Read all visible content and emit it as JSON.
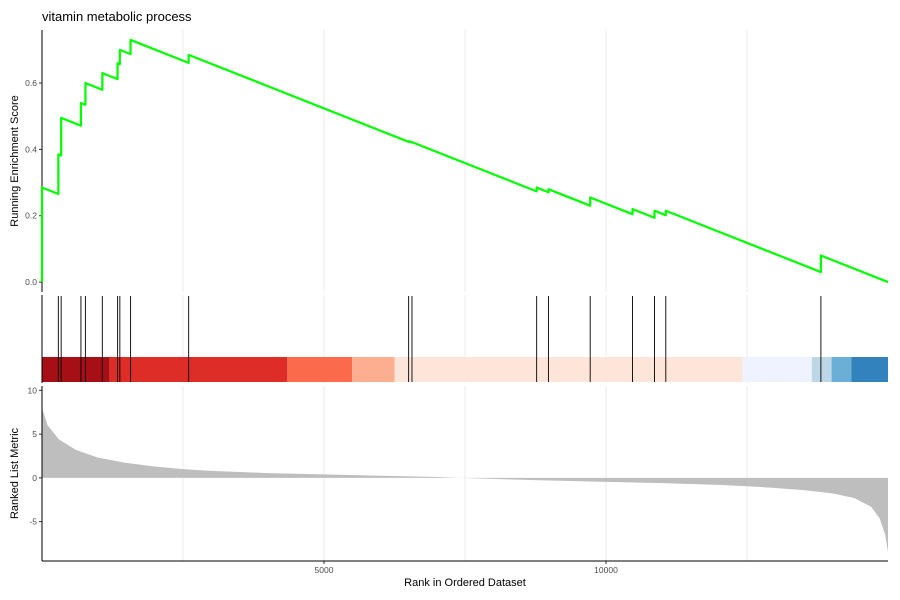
{
  "chart_data": {
    "type": "line",
    "title": "vitamin metabolic process",
    "x_axis": {
      "label": "Rank in Ordered Dataset",
      "range": [
        0,
        15000
      ],
      "ticks": [
        5000,
        10000
      ],
      "tick_labels": [
        "5000",
        "10000"
      ],
      "minor_grid": [
        2500,
        7500,
        12500
      ]
    },
    "panels": {
      "enrichment": {
        "ylabel": "Running Enrichment Score",
        "ylim": [
          -0.03,
          0.76
        ],
        "yticks": [
          0.0,
          0.2,
          0.4,
          0.6
        ],
        "ytick_labels": [
          "0.0",
          "0.2",
          "0.4",
          "0.6"
        ],
        "line_color": "#00ff00",
        "hit_positions": [
          0,
          290,
          340,
          690,
          770,
          1070,
          1340,
          1380,
          1570,
          2600,
          6500,
          6560,
          8770,
          8980,
          9720,
          10470,
          10860,
          11060,
          13810
        ],
        "peak_scores": [
          0.285,
          0.385,
          0.495,
          0.54,
          0.6,
          0.63,
          0.66,
          0.7,
          0.73,
          0.685,
          0.425,
          0.422,
          0.285,
          0.28,
          0.255,
          0.22,
          0.215,
          0.215,
          0.08
        ],
        "end": [
          15000,
          0.0
        ]
      },
      "hits": {
        "line_color": "#000000",
        "heat_bands": [
          {
            "from": 0,
            "to": 1200,
            "color": "#a50f15"
          },
          {
            "from": 1200,
            "to": 4350,
            "color": "#de2d26"
          },
          {
            "from": 4350,
            "to": 5500,
            "color": "#fb6a4a"
          },
          {
            "from": 5500,
            "to": 6250,
            "color": "#fcae91"
          },
          {
            "from": 6250,
            "to": 12420,
            "color": "#fee5d9"
          },
          {
            "from": 12420,
            "to": 13650,
            "color": "#eff3ff"
          },
          {
            "from": 13650,
            "to": 14000,
            "color": "#bdd7e7"
          },
          {
            "from": 14000,
            "to": 14350,
            "color": "#6baed6"
          },
          {
            "from": 14350,
            "to": 15000,
            "color": "#3182bd"
          }
        ]
      },
      "ranked_metric": {
        "ylabel": "Ranked List Metric",
        "ylim": [
          -9.5,
          10.5
        ],
        "yticks": [
          -5,
          0,
          5,
          10
        ],
        "ytick_labels": [
          "-5",
          "0",
          "5",
          "10"
        ],
        "fill_color": "#bebebe",
        "curve": [
          [
            0,
            8.0
          ],
          [
            100,
            6.0
          ],
          [
            300,
            4.4
          ],
          [
            600,
            3.2
          ],
          [
            1000,
            2.3
          ],
          [
            1500,
            1.7
          ],
          [
            2000,
            1.3
          ],
          [
            2500,
            1.0
          ],
          [
            3000,
            0.8
          ],
          [
            4000,
            0.55
          ],
          [
            5000,
            0.4
          ],
          [
            6000,
            0.25
          ],
          [
            7000,
            0.1
          ],
          [
            7400,
            0.0
          ],
          [
            8000,
            -0.12
          ],
          [
            9000,
            -0.3
          ],
          [
            10000,
            -0.45
          ],
          [
            11000,
            -0.6
          ],
          [
            12000,
            -0.8
          ],
          [
            12500,
            -0.95
          ],
          [
            13000,
            -1.15
          ],
          [
            13500,
            -1.4
          ],
          [
            14000,
            -1.75
          ],
          [
            14400,
            -2.3
          ],
          [
            14700,
            -3.3
          ],
          [
            14850,
            -4.6
          ],
          [
            14950,
            -6.5
          ],
          [
            15000,
            -8.5
          ]
        ]
      }
    }
  }
}
